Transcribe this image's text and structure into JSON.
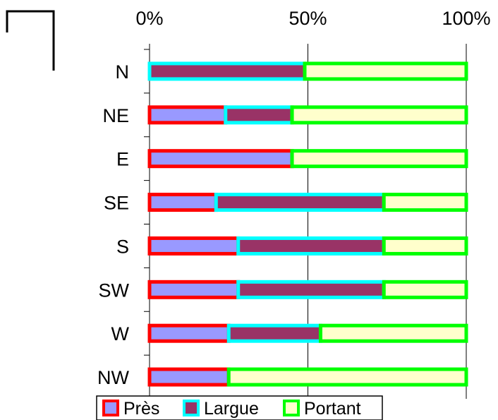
{
  "chart_data": {
    "type": "bar",
    "stacked": "percent",
    "orientation": "horizontal",
    "title": "",
    "xlabel": "",
    "ylabel": "",
    "xlim": [
      0,
      100
    ],
    "x_ticks": [
      "0%",
      "50%",
      "100%"
    ],
    "grid": true,
    "legend_position": "bottom",
    "categories": [
      "N",
      "NE",
      "E",
      "SE",
      "S",
      "SW",
      "W",
      "NW"
    ],
    "series": [
      {
        "name": "Près",
        "values": [
          0,
          24,
          45,
          21,
          28,
          28,
          25,
          25
        ],
        "fill": "#9999ff",
        "stroke": "#ff0000"
      },
      {
        "name": "Largue",
        "values": [
          49,
          21,
          0,
          53,
          46,
          46,
          29,
          0
        ],
        "fill": "#993366",
        "stroke": "#00ffff"
      },
      {
        "name": "Portant",
        "values": [
          51,
          55,
          55,
          26,
          26,
          26,
          46,
          75
        ],
        "fill": "#ffffcc",
        "stroke": "#00ff00"
      }
    ]
  }
}
